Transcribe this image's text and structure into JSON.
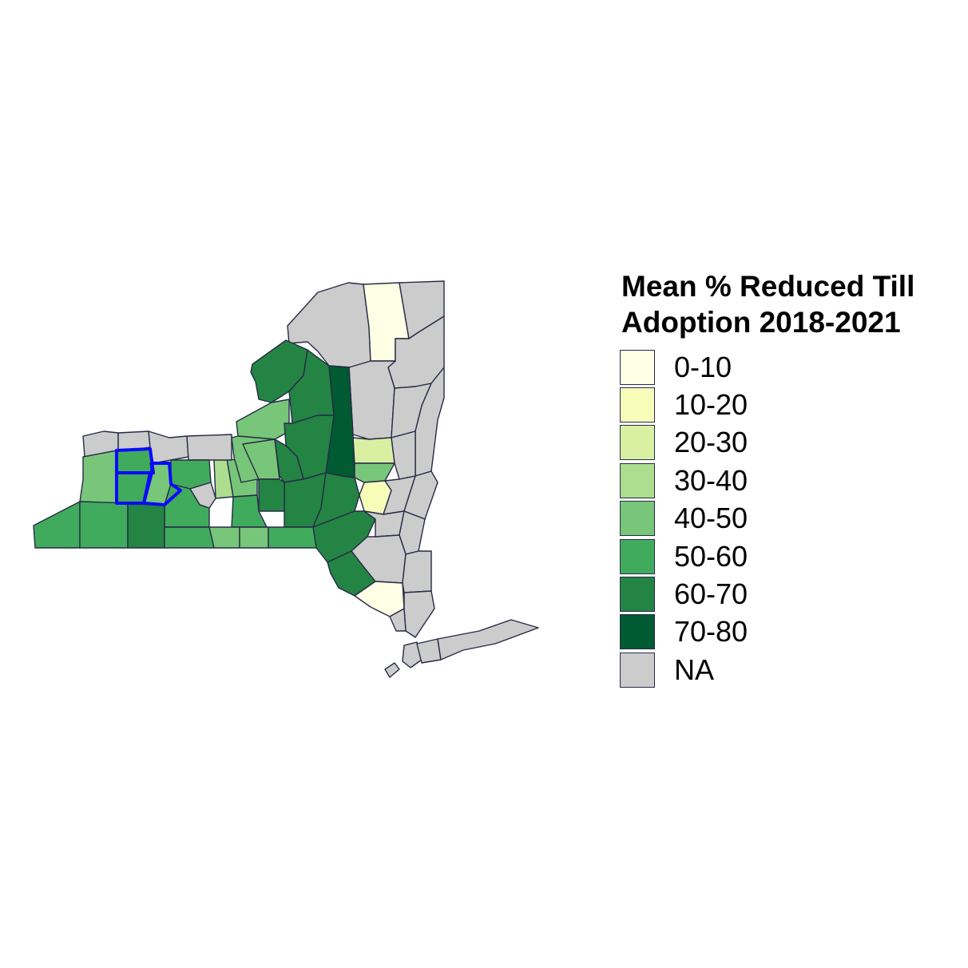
{
  "legend": {
    "title_line1": "Mean % Reduced Till",
    "title_line2": "Adoption 2018-2021",
    "items": [
      {
        "label": "0-10",
        "color": "#ffffe5"
      },
      {
        "label": "10-20",
        "color": "#f7fcb9"
      },
      {
        "label": "20-30",
        "color": "#d9f0a3"
      },
      {
        "label": "30-40",
        "color": "#addd8e"
      },
      {
        "label": "40-50",
        "color": "#78c679"
      },
      {
        "label": "50-60",
        "color": "#41ab5d"
      },
      {
        "label": "60-70",
        "color": "#238443"
      },
      {
        "label": "70-80",
        "color": "#005a32"
      },
      {
        "label": "NA",
        "color": "#cccccc"
      }
    ]
  },
  "map": {
    "region": "New York State counties",
    "highlight_color": "#0000ff",
    "border_color": "#262b47",
    "highlighted_county_count": 3
  }
}
